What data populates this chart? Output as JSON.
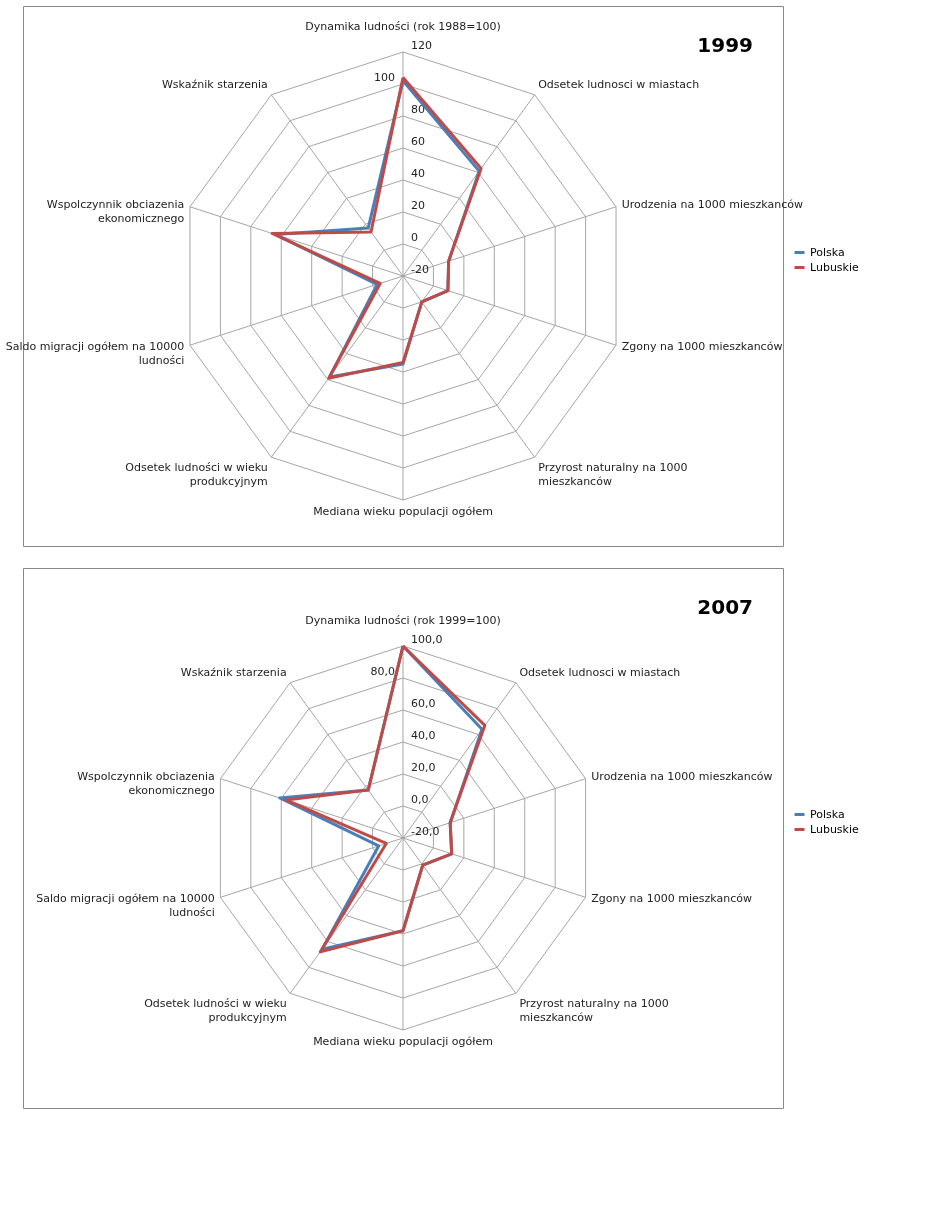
{
  "chart_data": [
    {
      "type": "radar",
      "title": "1999",
      "categories": [
        "Dynamika ludności (rok 1988=100)",
        "Odsetek ludnosci w miastach",
        "Urodzenia na 1000 mieszkanców",
        "Zgony na 1000 mieszkanców",
        "Przyrost naturalny na 1000 mieszkanców",
        "Mediana wieku populacji ogółem",
        "Odsetek ludności w wieku produkcyjnym",
        "Saldo migracji ogółem na 10000 ludności",
        "Wspolczynnik obciazenia ekonomicznego",
        "Wskaźnik starzenia"
      ],
      "series": [
        {
          "name": "Polska",
          "color": "#4a7ebb",
          "values": [
            102,
            61,
            10,
            9.5,
            0,
            35,
            58,
            -3,
            64,
            17
          ]
        },
        {
          "name": "Lubuskie",
          "color": "#be4b48",
          "values": [
            104,
            63,
            10,
            9.5,
            0,
            34,
            59,
            -5,
            66,
            14
          ]
        }
      ],
      "ylim": [
        -20,
        120
      ],
      "yticks": [
        -20,
        0,
        20,
        40,
        60,
        80,
        100,
        120
      ],
      "legend": "right",
      "grid": true
    },
    {
      "type": "radar",
      "title": "2007",
      "categories": [
        "Dynamika ludności (rok 1999=100)",
        "Odsetek ludnosci w miastach",
        "Urodzenia na 1000 mieszkanców",
        "Zgony na 1000 mieszkanców",
        "Przyrost naturalny na 1000 mieszkanców",
        "Mediana wieku populacji ogółem",
        "Odsetek ludności w wieku produkcyjnym",
        "Saldo migracji ogółem na 10000 ludności",
        "Wspolczynnik obciazenia ekonomicznego",
        "Wskaźnik starzenia"
      ],
      "series": [
        {
          "name": "Polska",
          "color": "#4a7ebb",
          "values": [
            100,
            64,
            11,
            12,
            1,
            38,
            66,
            -4,
            61,
            17
          ]
        },
        {
          "name": "Lubuskie",
          "color": "#be4b48",
          "values": [
            100,
            67,
            11,
            12,
            1,
            38,
            68,
            -9,
            57,
            17
          ]
        }
      ],
      "ylim": [
        -20,
        100
      ],
      "yticks": [
        {
          "value": -20,
          "label": "-20,0"
        },
        {
          "value": 0,
          "label": "0,0"
        },
        {
          "value": 20,
          "label": "20,0"
        },
        {
          "value": 40,
          "label": "40,0"
        },
        {
          "value": 60,
          "label": "60,0"
        },
        {
          "value": 80,
          "label": "80,0"
        },
        {
          "value": 100,
          "label": "100,0"
        }
      ],
      "legend": "right",
      "grid": true
    }
  ]
}
